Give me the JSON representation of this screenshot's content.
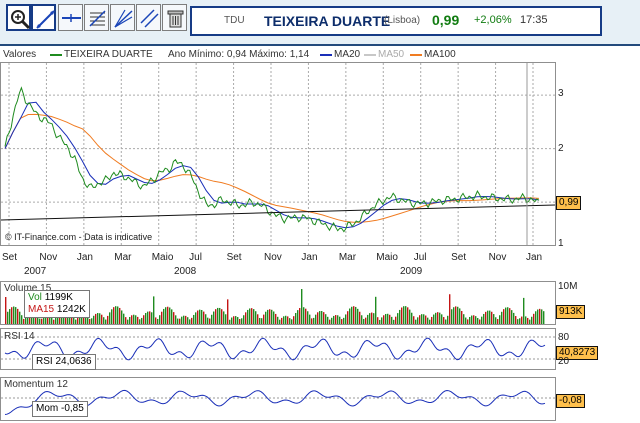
{
  "toolbar": {
    "tools": [
      {
        "name": "zoom-in-tool-button",
        "icon": "magnifier-plus-icon"
      },
      {
        "name": "draw-line-tool-button",
        "icon": "draw-line-icon"
      },
      {
        "name": "horizontal-line-tool-button",
        "icon": "horizontal-line-icon"
      },
      {
        "name": "fibonacci-tool-button",
        "icon": "fibonacci-icon"
      },
      {
        "name": "fan-tool-button",
        "icon": "fan-lines-icon"
      },
      {
        "name": "parallel-lines-tool-button",
        "icon": "parallel-lines-icon"
      },
      {
        "name": "trash-tool-button",
        "icon": "trash-icon"
      }
    ]
  },
  "quote": {
    "symbol": "TDU",
    "name": "TEIXEIRA DUARTE",
    "exchange": "(Lisboa)",
    "price": "0,99",
    "change": "+2,06%",
    "time": "17:35"
  },
  "price_panel": {
    "legend": {
      "label": "Valores",
      "series": "TEIXEIRA DUARTE",
      "range": "Ano Mínimo: 0,94 Máximo: 1,14",
      "ma20": "MA20",
      "ma50": "MA50",
      "ma100": "MA100"
    },
    "watermark": "© IT-Finance.com - Data is indicative",
    "last_value_tag": "0,99"
  },
  "xaxis": {
    "months": [
      "Set",
      "Nov",
      "Jan",
      "Mar",
      "Maio",
      "Jul",
      "Set",
      "Nov",
      "Jan",
      "Mar",
      "Maio",
      "Jul",
      "Set",
      "Nov",
      "Jan"
    ],
    "years": [
      "2007",
      "2008",
      "2009"
    ]
  },
  "volume_panel": {
    "title": "Volume 15",
    "vol_label": "Vol",
    "vol_value": "1199K",
    "ma_label": "MA15",
    "ma_value": "1242K",
    "y_top": "10M",
    "tag": "913K"
  },
  "rsi_panel": {
    "title": "RSI 14",
    "legend": "RSI 24,0636",
    "y_top": "80",
    "y_bottom": "20",
    "tag": "40,8273"
  },
  "momentum_panel": {
    "title": "Momentum 12",
    "legend": "Mom -0,85",
    "tag": "-0,08"
  },
  "chart_data": {
    "type": "line",
    "title": "TEIXEIRA DUARTE",
    "y_axis_ticks": [
      1,
      2,
      3
    ],
    "x_ticks": [
      "Set",
      "Nov",
      "Jan",
      "Mar",
      "Maio",
      "Jul",
      "Set",
      "Nov",
      "Jan",
      "Mar",
      "Maio",
      "Jul",
      "Set",
      "Nov",
      "Jan"
    ],
    "series": [
      {
        "name": "TEIXEIRA DUARTE",
        "color": "#1f8b1f",
        "x": [
          0,
          1,
          2,
          3,
          4,
          5,
          6,
          7,
          8,
          9,
          10,
          11,
          12,
          13,
          14,
          15,
          16,
          17,
          18,
          19,
          20,
          21,
          22,
          23,
          24,
          25,
          26,
          27,
          28,
          29,
          30,
          31,
          32,
          33,
          34,
          35,
          36,
          37,
          38,
          39,
          40,
          41,
          42,
          43,
          44,
          45,
          46,
          47,
          48,
          49,
          50,
          51,
          52,
          53,
          54,
          55,
          56,
          57,
          58,
          59,
          60,
          61,
          62,
          63,
          64,
          65,
          66,
          67,
          68,
          69
        ],
        "values": [
          2.0,
          2.6,
          3.1,
          2.85,
          2.65,
          2.55,
          2.45,
          2.2,
          2.05,
          1.8,
          1.45,
          1.25,
          1.35,
          1.4,
          1.55,
          1.5,
          1.45,
          1.35,
          1.3,
          1.4,
          1.55,
          1.6,
          1.75,
          1.7,
          1.5,
          1.2,
          0.95,
          0.95,
          1.05,
          1.0,
          0.95,
          0.95,
          1.0,
          0.95,
          0.85,
          0.75,
          0.7,
          0.7,
          0.72,
          0.7,
          0.65,
          0.6,
          0.55,
          0.5,
          0.52,
          0.6,
          0.7,
          0.85,
          0.95,
          1.05,
          1.1,
          1.05,
          1.0,
          0.98,
          0.97,
          1.0,
          1.02,
          1.05,
          1.05,
          1.08,
          1.1,
          1.12,
          1.1,
          1.08,
          1.07,
          1.05,
          1.06,
          1.08,
          1.05,
          0.99
        ]
      }
    ],
    "ylim": [
      0.2,
      3.6
    ]
  }
}
